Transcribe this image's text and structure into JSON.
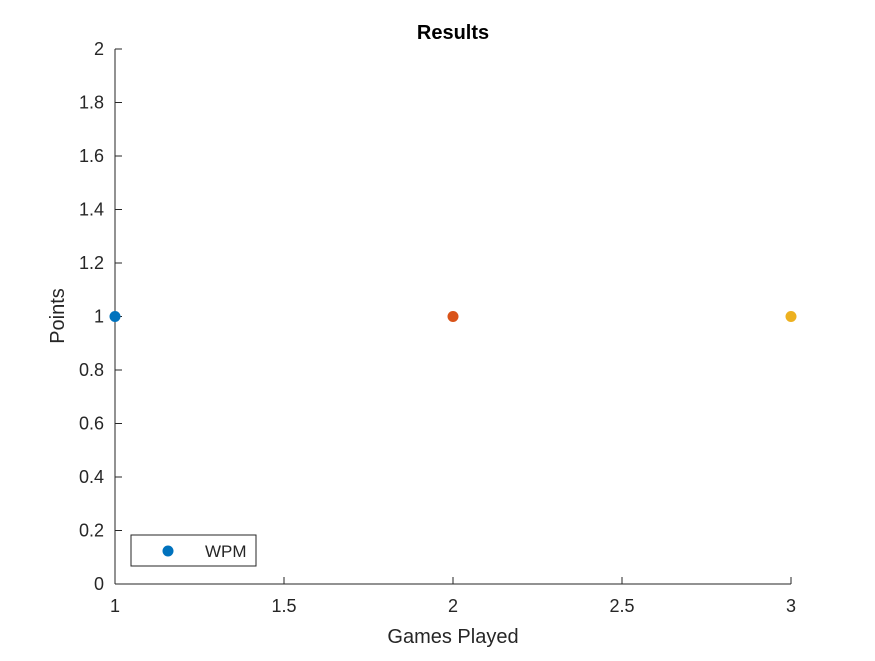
{
  "chart_data": {
    "type": "scatter",
    "title": "Results",
    "xlabel": "Games Played",
    "ylabel": "Points",
    "xlim": [
      1,
      3
    ],
    "ylim": [
      0,
      2
    ],
    "xticks": [
      1,
      1.5,
      2,
      2.5,
      3
    ],
    "xtick_labels": [
      "1",
      "1.5",
      "2",
      "2.5",
      "3"
    ],
    "yticks": [
      0,
      0.2,
      0.4,
      0.6,
      0.8,
      1,
      1.2,
      1.4,
      1.6,
      1.8,
      2
    ],
    "ytick_labels": [
      "0",
      "0.2",
      "0.4",
      "0.6",
      "0.8",
      "1",
      "1.2",
      "1.4",
      "1.6",
      "1.8",
      "2"
    ],
    "grid": false,
    "legend": {
      "position": "bottom-left",
      "entries": [
        "WPM"
      ]
    },
    "points": [
      {
        "x": 1,
        "y": 1,
        "color": "#0072BD"
      },
      {
        "x": 2,
        "y": 1,
        "color": "#D95319"
      },
      {
        "x": 3,
        "y": 1,
        "color": "#EDB120"
      }
    ],
    "legend_color": "#0072BD"
  }
}
